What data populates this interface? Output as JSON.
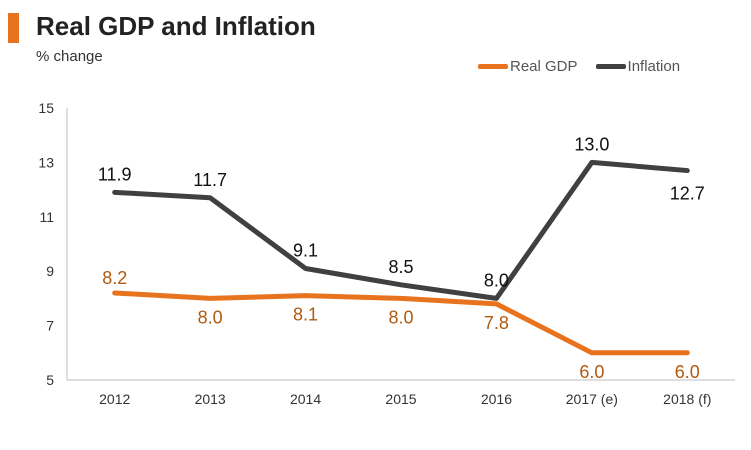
{
  "chart_data": {
    "type": "line",
    "title": "Real GDP and Inflation",
    "subtitle": "% change",
    "categories": [
      "2012",
      "2013",
      "2014",
      "2015",
      "2016",
      "2017 (e)",
      "2018 (f)"
    ],
    "series": [
      {
        "name": "Real GDP",
        "color": "#E8731E",
        "label_color": "#B05A10",
        "values": [
          8.2,
          8.0,
          8.1,
          8.0,
          7.8,
          6.0,
          6.0
        ],
        "labels": [
          "8.2",
          "8.0",
          "8.1",
          "8.0",
          "7.8",
          "6.0",
          "6.0"
        ]
      },
      {
        "name": "Inflation",
        "color": "#404040",
        "label_color": "#111111",
        "values": [
          11.9,
          11.7,
          9.1,
          8.5,
          8.0,
          13.0,
          12.7
        ],
        "labels": [
          "11.9",
          "11.7",
          "9.1",
          "8.5",
          "8.0",
          "13.0",
          "12.7"
        ]
      }
    ],
    "yticks": [
      5,
      7,
      9,
      11,
      13,
      15
    ],
    "ylim": [
      5,
      15
    ],
    "xlabel": "",
    "ylabel": "",
    "legend": "top-right",
    "grid": false
  },
  "colors": {
    "accent": "#E8731E"
  }
}
